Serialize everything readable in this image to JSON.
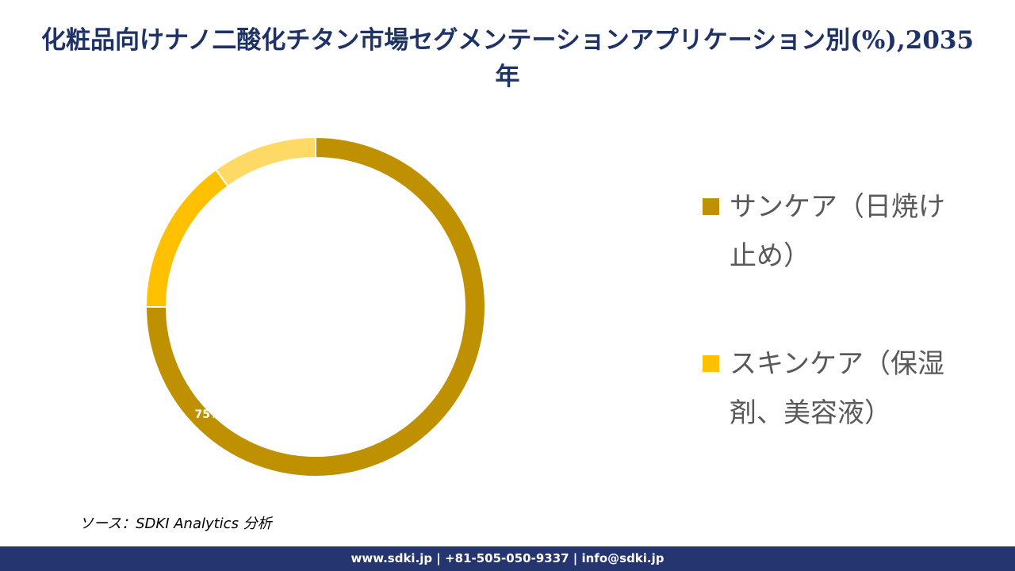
{
  "chart_data": {
    "type": "donut",
    "title": "化粧品向けナノ二酸化チタン市場セグメンテーションアプリケーション別(%),2035年",
    "categories": [
      "サンケア（日焼け止め）",
      "スキンケア（保湿剤、美容液）",
      null
    ],
    "values": [
      75,
      15,
      10
    ],
    "value_labels": [
      "75%",
      null,
      null
    ],
    "colors": [
      "#BF9000",
      "#FFC000",
      "#FFD966"
    ]
  },
  "source": "ソース：SDKI Analytics 分析",
  "footer": "www.sdki.jp | +81-505-050-9337 | info@sdki.jp"
}
